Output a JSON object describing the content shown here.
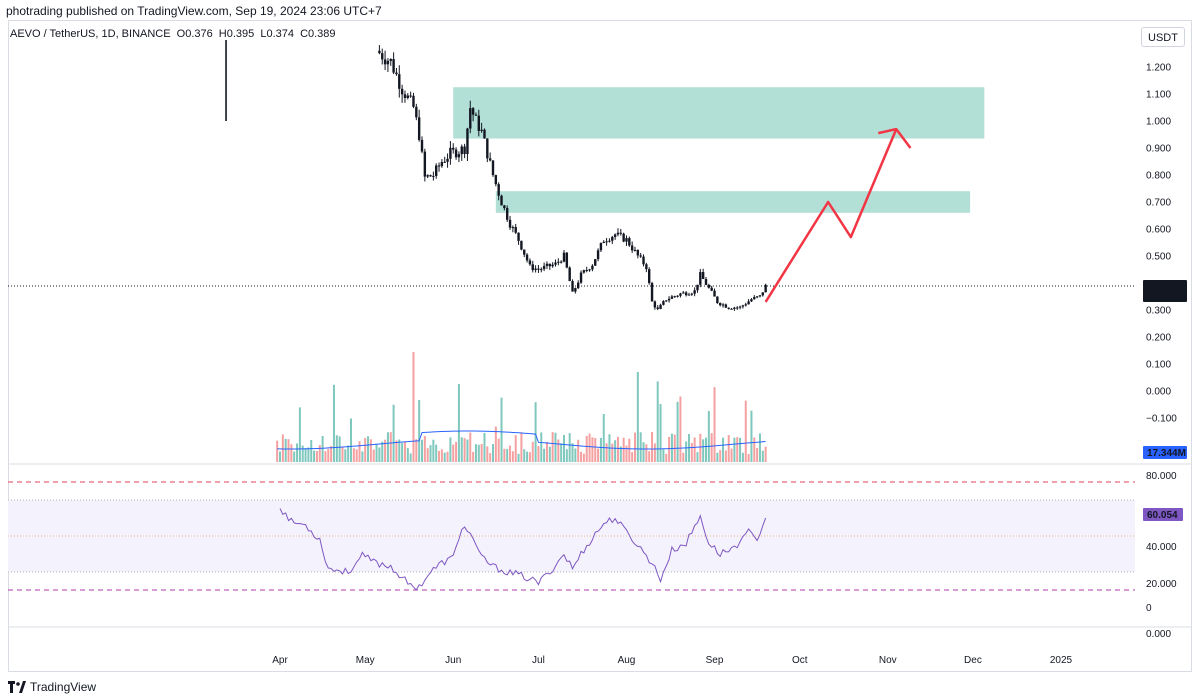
{
  "header": {
    "publish_line": "photrading published on TradingView.com, Sep 19, 2024 23:06 UTC+7"
  },
  "symbol": {
    "name": "AEVO / TetherUS, 1D, BINANCE",
    "open": "O0.376",
    "high": "H0.395",
    "low": "L0.374",
    "close": "C0.389"
  },
  "currency_button": "USDT",
  "footer": {
    "brand": "TradingView"
  },
  "colors": {
    "zone_fill": "#b2dfd6",
    "arrow": "#f23645",
    "rsi_line": "#7e57c2",
    "rsi_band": "#f4f2fd",
    "vol_up": "#7fc8bd",
    "vol_down": "#f5a1a1",
    "vol_ma": "#2962ff",
    "candle": "#131722"
  },
  "labels": {
    "price_current": "0.389",
    "countdown": "07:53:39",
    "volume_badge": "17.344M",
    "rsi_badge": "60.054"
  },
  "chart_data": [
    {
      "type": "candlestick",
      "title": "AEVO / TetherUS, 1D, BINANCE",
      "x_ticks": [
        "Apr",
        "May",
        "Jun",
        "Jul",
        "Aug",
        "Sep",
        "Oct",
        "Nov",
        "Dec",
        "2025"
      ],
      "y_ticks": [
        "1.200",
        "1.100",
        "1.000",
        "0.900",
        "0.800",
        "0.700",
        "0.600",
        "0.500",
        "0.300",
        "0.200",
        "0.100",
        "0.000",
        "−0.100"
      ],
      "close_path": [
        {
          "d": "2024-03-13",
          "v": 1.0
        },
        {
          "d": "2024-05-05",
          "v": 1.26
        },
        {
          "d": "2024-05-10",
          "v": 1.22
        },
        {
          "d": "2024-05-14",
          "v": 1.12
        },
        {
          "d": "2024-05-18",
          "v": 1.05
        },
        {
          "d": "2024-05-20",
          "v": 0.95
        },
        {
          "d": "2024-05-22",
          "v": 0.79
        },
        {
          "d": "2024-05-25",
          "v": 0.8
        },
        {
          "d": "2024-05-28",
          "v": 0.85
        },
        {
          "d": "2024-05-31",
          "v": 0.88
        },
        {
          "d": "2024-06-03",
          "v": 0.89
        },
        {
          "d": "2024-06-05",
          "v": 0.9
        },
        {
          "d": "2024-06-07",
          "v": 1.05
        },
        {
          "d": "2024-06-09",
          "v": 1.0
        },
        {
          "d": "2024-06-11",
          "v": 0.96
        },
        {
          "d": "2024-06-13",
          "v": 0.88
        },
        {
          "d": "2024-06-15",
          "v": 0.8
        },
        {
          "d": "2024-06-18",
          "v": 0.7
        },
        {
          "d": "2024-06-21",
          "v": 0.62
        },
        {
          "d": "2024-06-24",
          "v": 0.56
        },
        {
          "d": "2024-06-28",
          "v": 0.46
        },
        {
          "d": "2024-07-01",
          "v": 0.45
        },
        {
          "d": "2024-07-04",
          "v": 0.46
        },
        {
          "d": "2024-07-07",
          "v": 0.47
        },
        {
          "d": "2024-07-10",
          "v": 0.5
        },
        {
          "d": "2024-07-13",
          "v": 0.36
        },
        {
          "d": "2024-07-16",
          "v": 0.43
        },
        {
          "d": "2024-07-20",
          "v": 0.47
        },
        {
          "d": "2024-07-24",
          "v": 0.56
        },
        {
          "d": "2024-07-28",
          "v": 0.58
        },
        {
          "d": "2024-08-01",
          "v": 0.56
        },
        {
          "d": "2024-08-05",
          "v": 0.5
        },
        {
          "d": "2024-08-08",
          "v": 0.46
        },
        {
          "d": "2024-08-10",
          "v": 0.33
        },
        {
          "d": "2024-08-12",
          "v": 0.3
        },
        {
          "d": "2024-08-15",
          "v": 0.34
        },
        {
          "d": "2024-08-20",
          "v": 0.36
        },
        {
          "d": "2024-08-25",
          "v": 0.37
        },
        {
          "d": "2024-08-27",
          "v": 0.43
        },
        {
          "d": "2024-08-30",
          "v": 0.38
        },
        {
          "d": "2024-09-02",
          "v": 0.33
        },
        {
          "d": "2024-09-06",
          "v": 0.31
        },
        {
          "d": "2024-09-10",
          "v": 0.31
        },
        {
          "d": "2024-09-14",
          "v": 0.34
        },
        {
          "d": "2024-09-17",
          "v": 0.35
        },
        {
          "d": "2024-09-19",
          "v": 0.389
        }
      ],
      "resistance_zones": [
        {
          "from": "2024-06-01",
          "to": "2024-12-05",
          "low": 0.935,
          "high": 1.125
        },
        {
          "from": "2024-06-16",
          "to": "2024-11-30",
          "low": 0.66,
          "high": 0.74
        }
      ],
      "projection_arrow": [
        {
          "d": "2024-09-19",
          "v": 0.33
        },
        {
          "d": "2024-10-11",
          "v": 0.7
        },
        {
          "d": "2024-10-19",
          "v": 0.57
        },
        {
          "d": "2024-11-04",
          "v": 0.97
        },
        {
          "d": "2024-11-09",
          "v": 0.9
        }
      ],
      "current_price": 0.389
    },
    {
      "type": "bar",
      "title": "Volume",
      "last_value": "17.344M",
      "ma_label": "volume moving average"
    },
    {
      "type": "line",
      "title": "RSI",
      "y_ticks": [
        "80.000",
        "40.000",
        "20.000",
        "0",
        "0.000"
      ],
      "levels": [
        80,
        70,
        50,
        30,
        20
      ],
      "last_value": 60.054,
      "points": [
        {
          "d": "2024-04-01",
          "v": 66
        },
        {
          "d": "2024-04-05",
          "v": 58
        },
        {
          "d": "2024-04-10",
          "v": 56
        },
        {
          "d": "2024-04-15",
          "v": 48
        },
        {
          "d": "2024-04-18",
          "v": 32
        },
        {
          "d": "2024-04-25",
          "v": 30
        },
        {
          "d": "2024-04-30",
          "v": 39
        },
        {
          "d": "2024-05-05",
          "v": 35
        },
        {
          "d": "2024-05-10",
          "v": 33
        },
        {
          "d": "2024-05-14",
          "v": 27
        },
        {
          "d": "2024-05-17",
          "v": 22
        },
        {
          "d": "2024-05-20",
          "v": 22
        },
        {
          "d": "2024-05-24",
          "v": 30
        },
        {
          "d": "2024-05-28",
          "v": 35
        },
        {
          "d": "2024-06-01",
          "v": 38
        },
        {
          "d": "2024-06-04",
          "v": 55
        },
        {
          "d": "2024-06-07",
          "v": 52
        },
        {
          "d": "2024-06-10",
          "v": 40
        },
        {
          "d": "2024-06-15",
          "v": 33
        },
        {
          "d": "2024-06-20",
          "v": 30
        },
        {
          "d": "2024-06-25",
          "v": 28
        },
        {
          "d": "2024-07-01",
          "v": 24
        },
        {
          "d": "2024-07-05",
          "v": 30
        },
        {
          "d": "2024-07-10",
          "v": 40
        },
        {
          "d": "2024-07-13",
          "v": 32
        },
        {
          "d": "2024-07-16",
          "v": 40
        },
        {
          "d": "2024-07-20",
          "v": 49
        },
        {
          "d": "2024-07-24",
          "v": 57
        },
        {
          "d": "2024-07-28",
          "v": 60
        },
        {
          "d": "2024-08-01",
          "v": 52
        },
        {
          "d": "2024-08-05",
          "v": 45
        },
        {
          "d": "2024-08-10",
          "v": 35
        },
        {
          "d": "2024-08-13",
          "v": 26
        },
        {
          "d": "2024-08-17",
          "v": 42
        },
        {
          "d": "2024-08-22",
          "v": 46
        },
        {
          "d": "2024-08-27",
          "v": 61
        },
        {
          "d": "2024-08-30",
          "v": 46
        },
        {
          "d": "2024-09-03",
          "v": 40
        },
        {
          "d": "2024-09-07",
          "v": 43
        },
        {
          "d": "2024-09-11",
          "v": 48
        },
        {
          "d": "2024-09-14",
          "v": 54
        },
        {
          "d": "2024-09-16",
          "v": 48
        },
        {
          "d": "2024-09-19",
          "v": 60.054
        }
      ]
    }
  ]
}
